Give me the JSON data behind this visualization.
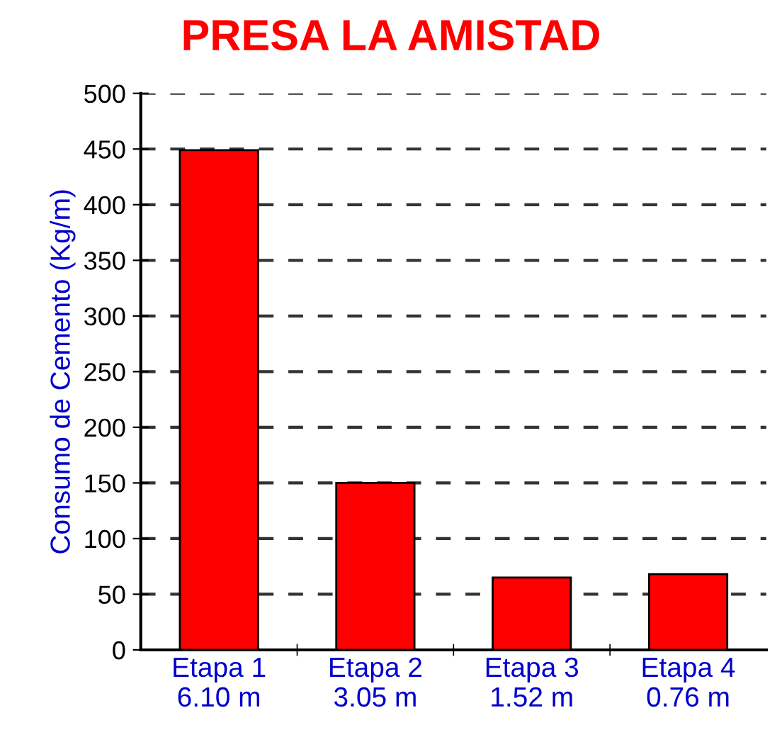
{
  "chart_data": {
    "type": "bar",
    "title": "PRESA LA AMISTAD",
    "ylabel": "Consumo de Cemento (Kg/m)",
    "categories": [
      "Etapa 1\n6.10 m",
      "Etapa 2\n3.05 m",
      "Etapa 3\n1.52 m",
      "Etapa 4\n0.76 m"
    ],
    "values": [
      449,
      150,
      65,
      68
    ],
    "color": "#ff0000",
    "ylim": [
      0,
      500
    ],
    "yticks": [
      0,
      50,
      100,
      150,
      200,
      250,
      300,
      350,
      400,
      450,
      500
    ],
    "grid": "y",
    "line_style": "dashed",
    "legend": false
  }
}
